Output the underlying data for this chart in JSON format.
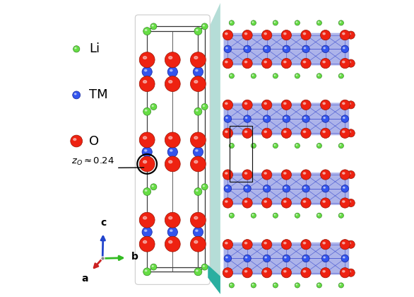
{
  "bg_color": "#ffffff",
  "li_col": "#66dd44",
  "li_ecol": "#338822",
  "tm_col": "#3355ee",
  "tm_ecol": "#112299",
  "o_col": "#ee2211",
  "o_ecol": "#991100",
  "teal_color": "#2aafa0",
  "teal_light": "#a8d8d0",
  "blue_layer_color": "#3344cc",
  "legend_items": [
    {
      "label": "Li",
      "col": "#66dd44",
      "ecol": "#338822",
      "r": 0.011
    },
    {
      "label": "TM",
      "col": "#3355ee",
      "ecol": "#112299",
      "r": 0.013
    },
    {
      "label": "O",
      "col": "#ee2211",
      "ecol": "#991100",
      "r": 0.02
    }
  ],
  "zo_label": "z$_O$ ≈ 0.24",
  "axis_labels": [
    "a",
    "b",
    "c"
  ],
  "axis_colors": [
    "#cc2222",
    "#33bb22",
    "#2244cc"
  ]
}
